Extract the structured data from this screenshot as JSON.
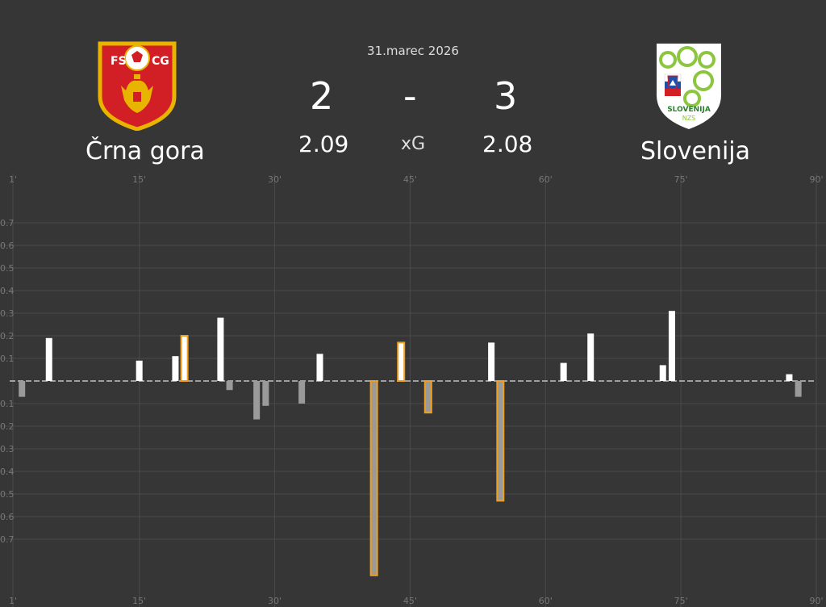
{
  "match": {
    "date": "31.marec 2026",
    "home": {
      "name": "Črna gora",
      "score": "2",
      "xg": "2.09",
      "crest_text": [
        "FS",
        "CG"
      ]
    },
    "away": {
      "name": "Slovenija",
      "score": "3",
      "xg": "2.08",
      "crest_text": [
        "SLOVENIJA",
        "NZS"
      ]
    },
    "separator": "-",
    "xg_label": "xG"
  },
  "colors": {
    "background": "#363636",
    "home_bar": "#ffffff",
    "away_bar": "#9a9a9a",
    "goal_outline": "#f0a020",
    "grid": "#4a4a4a",
    "tick_text": "#777777"
  },
  "chart_data": {
    "type": "bar",
    "xlim": [
      1,
      90
    ],
    "ylim": [
      -0.87,
      0.7
    ],
    "grid": true,
    "x_ticks": [
      "1'",
      "15'",
      "30'",
      "45'",
      "60'",
      "75'",
      "90'"
    ],
    "y_ticks": [
      "0.7",
      "0.6",
      "0.5",
      "0.4",
      "0.3",
      "0.2",
      "0.1",
      "0.1",
      "0.2",
      "0.3",
      "0.4",
      "0.5",
      "0.6",
      "0.7"
    ],
    "series": [
      {
        "name": "Črna gora",
        "points": [
          {
            "minute": 5,
            "xg": 0.19,
            "goal": false
          },
          {
            "minute": 15,
            "xg": 0.09,
            "goal": false
          },
          {
            "minute": 19,
            "xg": 0.11,
            "goal": false
          },
          {
            "minute": 20,
            "xg": 0.2,
            "goal": true
          },
          {
            "minute": 24,
            "xg": 0.28,
            "goal": false
          },
          {
            "minute": 35,
            "xg": 0.12,
            "goal": false
          },
          {
            "minute": 44,
            "xg": 0.17,
            "goal": true
          },
          {
            "minute": 54,
            "xg": 0.17,
            "goal": false
          },
          {
            "minute": 62,
            "xg": 0.08,
            "goal": false
          },
          {
            "minute": 65,
            "xg": 0.21,
            "goal": false
          },
          {
            "minute": 73,
            "xg": 0.07,
            "goal": false
          },
          {
            "minute": 74,
            "xg": 0.31,
            "goal": false
          },
          {
            "minute": 87,
            "xg": 0.03,
            "goal": false
          }
        ]
      },
      {
        "name": "Slovenija",
        "points": [
          {
            "minute": 2,
            "xg": 0.07,
            "goal": false
          },
          {
            "minute": 25,
            "xg": 0.04,
            "goal": false
          },
          {
            "minute": 28,
            "xg": 0.17,
            "goal": false
          },
          {
            "minute": 29,
            "xg": 0.11,
            "goal": false
          },
          {
            "minute": 33,
            "xg": 0.1,
            "goal": false
          },
          {
            "minute": 41,
            "xg": 0.86,
            "goal": true
          },
          {
            "minute": 47,
            "xg": 0.14,
            "goal": true
          },
          {
            "minute": 55,
            "xg": 0.53,
            "goal": true
          },
          {
            "minute": 88,
            "xg": 0.07,
            "goal": false
          }
        ]
      }
    ]
  }
}
